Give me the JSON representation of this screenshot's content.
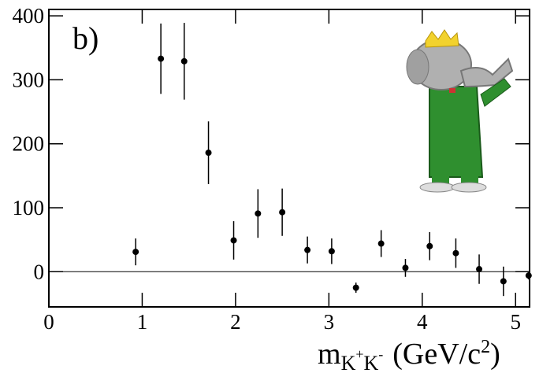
{
  "chart_data": {
    "type": "errorbar",
    "annotation": "b)",
    "x_label_parts": [
      "m",
      "K",
      "+",
      "K",
      "-",
      "(GeV/c",
      "2",
      ")"
    ],
    "xlim": [
      0,
      5.15
    ],
    "ylim": [
      -55,
      410
    ],
    "xticks": [
      0,
      1,
      2,
      3,
      4,
      5
    ],
    "yticks": [
      0,
      100,
      200,
      300,
      400
    ],
    "zero_line": true,
    "color": "#000000",
    "x": [
      0.93,
      1.2,
      1.45,
      1.71,
      1.98,
      2.24,
      2.5,
      2.77,
      3.03,
      3.29,
      3.56,
      3.82,
      4.08,
      4.36,
      4.61,
      4.87,
      5.14
    ],
    "values": [
      31,
      333,
      329,
      186,
      49,
      91,
      93,
      34,
      32,
      -25,
      44,
      6,
      40,
      29,
      4,
      -15,
      -6
    ],
    "errors": [
      21,
      55,
      60,
      49,
      30,
      38,
      37,
      21,
      20,
      8,
      21,
      14,
      22,
      23,
      23,
      23,
      6
    ]
  }
}
